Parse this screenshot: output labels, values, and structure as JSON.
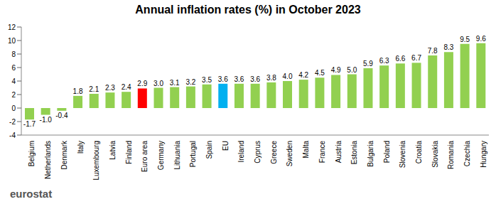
{
  "chart_data": {
    "type": "bar",
    "title": "Annual inflation rates (%) in October 2023",
    "source": "eurostat",
    "categories": [
      "Belgium",
      "Netherlands",
      "Denmark",
      "Italy",
      "Luxembourg",
      "Latvia",
      "Finland",
      "Euro area",
      "Germany",
      "Lithuania",
      "Portugal",
      "Spain",
      "EU",
      "Ireland",
      "Cyprus",
      "Greece",
      "Sweden",
      "Malta",
      "France",
      "Austria",
      "Estonia",
      "Bulgaria",
      "Poland",
      "Slovenia",
      "Croatia",
      "Slovakia",
      "Romania",
      "Czechia",
      "Hungary"
    ],
    "values": [
      -1.7,
      -1.0,
      -0.4,
      1.8,
      2.1,
      2.3,
      2.4,
      2.9,
      3.0,
      3.1,
      3.2,
      3.5,
      3.6,
      3.6,
      3.6,
      3.8,
      4.0,
      4.2,
      4.5,
      4.9,
      5.0,
      5.9,
      6.3,
      6.6,
      6.7,
      7.8,
      8.3,
      9.5,
      9.6
    ],
    "value_labels": [
      "-1.7",
      "-1.0",
      "-0.4",
      "1.8",
      "2.1",
      "2.3",
      "2.4",
      "2.9",
      "3.0",
      "3.1",
      "3.2",
      "3.5",
      "3.6",
      "3.6",
      "3.6",
      "3.8",
      "4.0",
      "4.2",
      "4.5",
      "4.9",
      "5.0",
      "5.9",
      "6.3",
      "6.6",
      "6.7",
      "7.8",
      "8.3",
      "9.5",
      "9.6"
    ],
    "colors": [
      "#92d050",
      "#92d050",
      "#92d050",
      "#92d050",
      "#92d050",
      "#92d050",
      "#92d050",
      "#ff0000",
      "#92d050",
      "#92d050",
      "#92d050",
      "#92d050",
      "#00b0f0",
      "#92d050",
      "#92d050",
      "#92d050",
      "#92d050",
      "#92d050",
      "#92d050",
      "#92d050",
      "#92d050",
      "#92d050",
      "#92d050",
      "#92d050",
      "#92d050",
      "#92d050",
      "#92d050",
      "#92d050",
      "#92d050"
    ],
    "ylim": [
      -4,
      12
    ],
    "yticks": [
      -4,
      -2,
      0,
      2,
      4,
      6,
      8,
      10,
      12
    ],
    "grid": false,
    "data_labels": true
  }
}
